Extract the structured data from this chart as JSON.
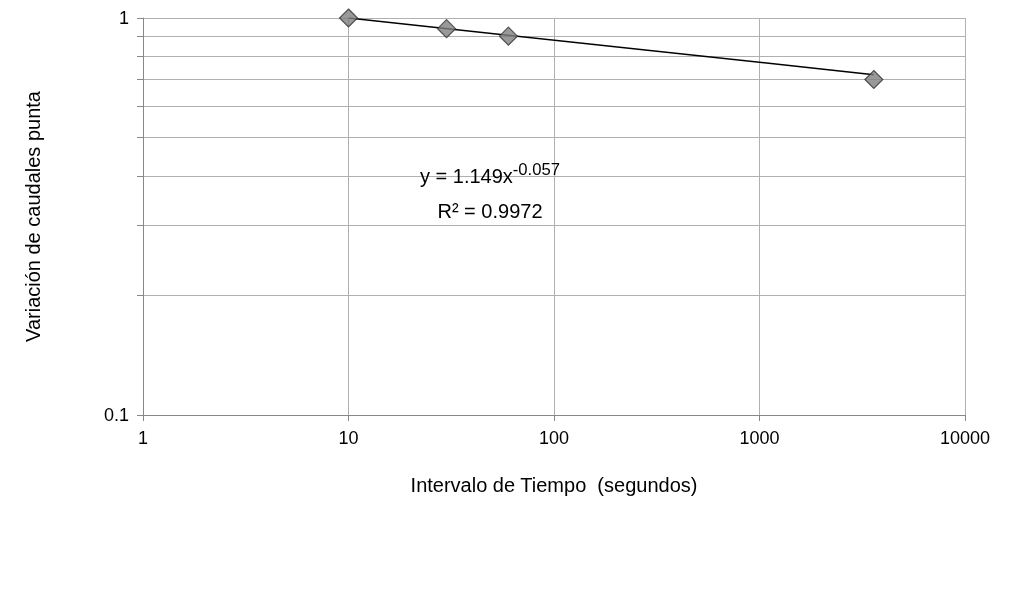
{
  "chart_data": {
    "type": "scatter",
    "xlabel": "Intervalo de Tiempo  (segundos)",
    "ylabel": "Variación de caudales punta",
    "log": "xy",
    "grid": true,
    "marker": "diamond",
    "xlim": [
      1,
      10000
    ],
    "xticks": [
      1,
      10,
      100,
      1000,
      10000
    ],
    "ylim": [
      0.1,
      1
    ],
    "yticks": [
      0.1,
      {
        "value": 0.2,
        "label": null
      },
      {
        "value": 0.3,
        "label": null
      },
      {
        "value": 0.4,
        "label": null
      },
      {
        "value": 0.5,
        "label": null
      },
      {
        "value": 0.6,
        "label": null
      },
      {
        "value": 0.7,
        "label": null
      },
      {
        "value": 0.8,
        "label": null
      },
      {
        "value": 0.9,
        "label": null
      },
      1
    ],
    "series": [
      {
        "color": "#808080",
        "x": [
          10,
          30,
          60,
          3600
        ],
        "values": [
          1.0,
          0.94,
          0.9,
          0.7
        ]
      },
      {
        "type": "line",
        "color": "#000000",
        "marker": "none",
        "x": [
          10,
          3600
        ],
        "values": [
          1.0,
          0.72
        ]
      }
    ],
    "annotations": [
      "y = 1.149x$^{-0.057}$",
      "R² = 0.9972"
    ]
  }
}
